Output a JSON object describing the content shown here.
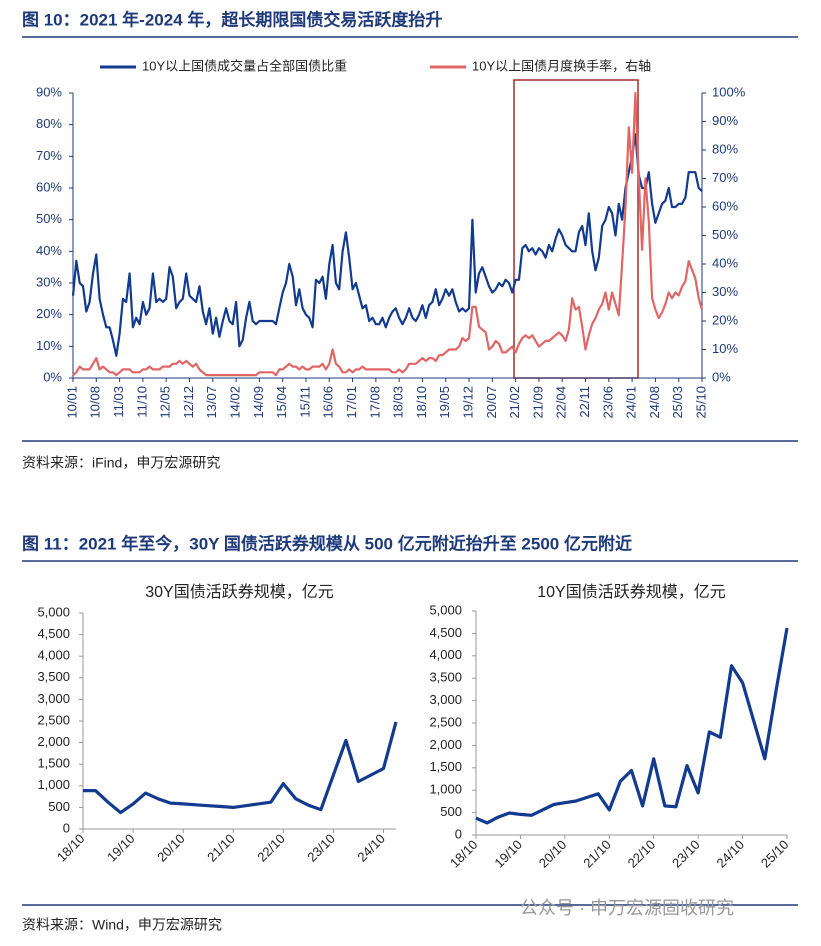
{
  "figures": [
    {
      "title": "图 10：2021 年-2024 年，超长期限国债交易活跃度抬升",
      "source": "资料来源：iFind，申万宏源研究"
    },
    {
      "title": "图 11：2021 年至今，30Y 国债活跃券规模从 500 亿元附近抬升至 2500 亿元附近",
      "source": "资料来源：Wind，申万宏源研究"
    }
  ],
  "watermark": "公众号 · 申万宏源固收研究",
  "chart_data": [
    {
      "type": "line",
      "legend": "top",
      "categories": [
        "10/01",
        null,
        null,
        null,
        null,
        null,
        null,
        "10/08",
        null,
        null,
        null,
        null,
        null,
        null,
        "11/03",
        null,
        null,
        null,
        null,
        null,
        null,
        "11/10",
        null,
        null,
        null,
        null,
        null,
        null,
        "12/05",
        null,
        null,
        null,
        null,
        null,
        null,
        "12/12",
        null,
        null,
        null,
        null,
        null,
        null,
        "13/07",
        null,
        null,
        null,
        null,
        null,
        null,
        "14/02",
        null,
        null,
        null,
        null,
        null,
        null,
        "14/09",
        null,
        null,
        null,
        null,
        null,
        null,
        "15/04",
        null,
        null,
        null,
        null,
        null,
        null,
        "15/11",
        null,
        null,
        null,
        null,
        null,
        null,
        "16/06",
        null,
        null,
        null,
        null,
        null,
        null,
        "17/01",
        null,
        null,
        null,
        null,
        null,
        null,
        "17/08",
        null,
        null,
        null,
        null,
        null,
        null,
        "18/03",
        null,
        null,
        null,
        null,
        null,
        null,
        "18/10",
        null,
        null,
        null,
        null,
        null,
        null,
        "19/05",
        null,
        null,
        null,
        null,
        null,
        null,
        "19/12",
        null,
        null,
        null,
        null,
        null,
        null,
        "20/07",
        null,
        null,
        null,
        null,
        null,
        null,
        "21/02",
        null,
        null,
        null,
        null,
        null,
        null,
        "21/09",
        null,
        null,
        null,
        null,
        null,
        null,
        "22/04",
        null,
        null,
        null,
        null,
        null,
        null,
        "22/11",
        null,
        null,
        null,
        null,
        null,
        null,
        "23/06",
        null,
        null,
        null,
        null,
        null,
        null,
        "24/01",
        null,
        null,
        null,
        null,
        null,
        null,
        "24/08",
        null,
        null,
        null,
        null,
        null,
        null,
        "25/03",
        null,
        null,
        null,
        null,
        null,
        null,
        "25/10"
      ],
      "series": [
        {
          "name": "10Y以上国债成交量占全部国债比重",
          "color": "#123a8f",
          "axis": "y",
          "values": [
            26,
            37,
            30,
            29,
            21,
            24,
            33,
            39,
            25,
            20,
            16,
            16,
            12,
            7,
            14,
            25,
            24,
            33,
            16,
            19,
            17,
            24,
            20,
            22,
            33,
            24,
            25,
            24,
            25,
            35,
            32,
            22,
            24,
            25,
            33,
            26,
            25,
            24,
            29,
            21,
            17,
            22,
            14,
            19,
            13,
            18,
            22,
            18,
            17,
            24,
            10,
            12,
            19,
            24,
            18,
            17,
            18,
            18,
            18,
            18,
            18,
            17,
            22,
            27,
            30,
            36,
            32,
            23,
            28,
            22,
            20,
            19,
            16,
            31,
            30,
            32,
            25,
            36,
            42,
            30,
            28,
            40,
            46,
            38,
            28,
            30,
            26,
            22,
            23,
            18,
            19,
            17,
            17,
            19,
            16,
            19,
            21,
            22,
            19,
            17,
            19,
            22,
            19,
            18,
            20,
            23,
            19,
            23,
            24,
            28,
            23,
            25,
            28,
            26,
            28,
            24,
            21,
            22,
            21,
            22,
            50,
            27,
            33,
            35,
            32,
            29,
            27,
            28,
            30,
            29,
            31,
            30,
            27,
            31,
            31,
            41,
            42,
            40,
            41,
            39,
            41,
            40,
            38,
            42,
            40,
            44,
            47,
            45,
            42,
            41,
            40,
            40,
            46,
            48,
            42,
            52,
            40,
            34,
            38,
            48,
            50,
            54,
            52,
            45,
            55,
            50,
            60,
            65,
            70,
            77,
            64,
            60,
            60,
            65,
            55,
            49,
            52,
            55,
            56,
            60,
            54,
            54,
            55,
            55,
            57,
            65,
            65,
            65,
            60,
            59
          ]
        },
        {
          "name": "10Y以上国债月度换手率，右轴",
          "color": "#e06666",
          "axis": "y2",
          "values": [
            1,
            2,
            4,
            3,
            3,
            3,
            5,
            7,
            3,
            4,
            3,
            2,
            2,
            1,
            2,
            3,
            3,
            3,
            2,
            2,
            2,
            3,
            3,
            4,
            3,
            3,
            3,
            4,
            4,
            4,
            5,
            5,
            6,
            5,
            6,
            5,
            4,
            5,
            3,
            2,
            1,
            1,
            1,
            1,
            1,
            1,
            1,
            1,
            1,
            1,
            1,
            1,
            1,
            1,
            1,
            1,
            2,
            2,
            2,
            2,
            2,
            1,
            3,
            3,
            4,
            5,
            4,
            4,
            3,
            4,
            3,
            3,
            4,
            4,
            4,
            5,
            3,
            5,
            10,
            5,
            4,
            2,
            2,
            3,
            2,
            3,
            3,
            4,
            3,
            3,
            3,
            3,
            3,
            3,
            3,
            3,
            2,
            2,
            3,
            2,
            3,
            5,
            5,
            5,
            6,
            7,
            6,
            7,
            7,
            6,
            8,
            8,
            9,
            10,
            10,
            10,
            11,
            14,
            13,
            14,
            25,
            25,
            18,
            17,
            16,
            10,
            11,
            13,
            12,
            9,
            9,
            10,
            11,
            9,
            12,
            14,
            15,
            14,
            15,
            13,
            11,
            12,
            13,
            13,
            14,
            15,
            16,
            15,
            13,
            17,
            28,
            24,
            25,
            18,
            10,
            15,
            19,
            21,
            24,
            26,
            30,
            24,
            30,
            26,
            22,
            40,
            60,
            88,
            72,
            100,
            70,
            45,
            70,
            55,
            28,
            24,
            21,
            23,
            26,
            30,
            28,
            30,
            29,
            32,
            34,
            41,
            38,
            35,
            28,
            24
          ]
        }
      ],
      "ylim": [
        0,
        90
      ],
      "yticks": [
        {
          "value": 0,
          "label": "0%"
        },
        {
          "value": 10,
          "label": "10%"
        },
        {
          "value": 20,
          "label": "20%"
        },
        {
          "value": 30,
          "label": "30%"
        },
        {
          "value": 40,
          "label": "40%"
        },
        {
          "value": 50,
          "label": "50%"
        },
        {
          "value": 60,
          "label": "60%"
        },
        {
          "value": 70,
          "label": "70%"
        },
        {
          "value": 80,
          "label": "80%"
        },
        {
          "value": 90,
          "label": "90%"
        }
      ],
      "y2lim": [
        0,
        100
      ],
      "y2ticks": [
        {
          "value": 0,
          "label": "0%"
        },
        {
          "value": 10,
          "label": "10%"
        },
        {
          "value": 20,
          "label": "20%"
        },
        {
          "value": 30,
          "label": "30%"
        },
        {
          "value": 40,
          "label": "40%"
        },
        {
          "value": 50,
          "label": "50%"
        },
        {
          "value": 60,
          "label": "60%"
        },
        {
          "value": 70,
          "label": "70%"
        },
        {
          "value": 80,
          "label": "80%"
        },
        {
          "value": 90,
          "label": "90%"
        },
        {
          "value": 100,
          "label": "100%"
        }
      ]
    },
    {
      "type": "line",
      "title": "30Y国债活跃券规模，亿元",
      "categories": [
        "18/10",
        null,
        null,
        null,
        "19/10",
        null,
        null,
        null,
        "20/10",
        null,
        null,
        null,
        "21/10",
        null,
        null,
        null,
        "22/10",
        null,
        null,
        null,
        "23/10",
        null,
        null,
        null,
        "24/10",
        null
      ],
      "series": [
        {
          "color": "#123a8f",
          "values": [
            890,
            890,
            620,
            380,
            580,
            830,
            700,
            600,
            580,
            560,
            540,
            520,
            500,
            540,
            580,
            620,
            1050,
            700,
            550,
            450,
            1250,
            2050,
            1100,
            1250,
            1400,
            2480
          ]
        }
      ],
      "ylim": [
        0,
        5000
      ],
      "yticks": [
        0,
        500,
        {
          "value": 1000,
          "label": "1,000"
        },
        {
          "value": 1500,
          "label": "1,500"
        },
        {
          "value": 2000,
          "label": "2,000"
        },
        {
          "value": 2500,
          "label": "2,500"
        },
        {
          "value": 3000,
          "label": "3,000"
        },
        {
          "value": 3500,
          "label": "3,500"
        },
        {
          "value": 4000,
          "label": "4,000"
        },
        {
          "value": 4500,
          "label": "4,500"
        },
        {
          "value": 5000,
          "label": "5,000"
        }
      ]
    },
    {
      "type": "line",
      "title": "10Y国债活跃券规模，亿元",
      "categories": [
        "18/10",
        null,
        null,
        null,
        "19/10",
        null,
        null,
        null,
        "20/10",
        null,
        null,
        null,
        "21/10",
        null,
        null,
        null,
        "22/10",
        null,
        null,
        null,
        "23/10",
        null,
        null,
        null,
        "24/10",
        null,
        null,
        null,
        "25/10"
      ],
      "series": [
        {
          "color": "#123a8f",
          "values": [
            375,
            270,
            400,
            490,
            460,
            440,
            560,
            680,
            720,
            760,
            840,
            920,
            560,
            1200,
            1440,
            650,
            1700,
            650,
            630,
            1550,
            940,
            2300,
            2180,
            3780,
            3400,
            2550,
            1700,
            3200,
            4620
          ]
        }
      ],
      "ylim": [
        0,
        5000
      ],
      "yticks": [
        0,
        500,
        {
          "value": 1000,
          "label": "1,000"
        },
        {
          "value": 1500,
          "label": "1,500"
        },
        {
          "value": 2000,
          "label": "2,000"
        },
        {
          "value": 2500,
          "label": "2,500"
        },
        {
          "value": 3000,
          "label": "3,000"
        },
        {
          "value": 3500,
          "label": "3,500"
        },
        {
          "value": 4000,
          "label": "4,000"
        },
        {
          "value": 4500,
          "label": "4,500"
        },
        {
          "value": 5000,
          "label": "5,000"
        }
      ]
    }
  ]
}
